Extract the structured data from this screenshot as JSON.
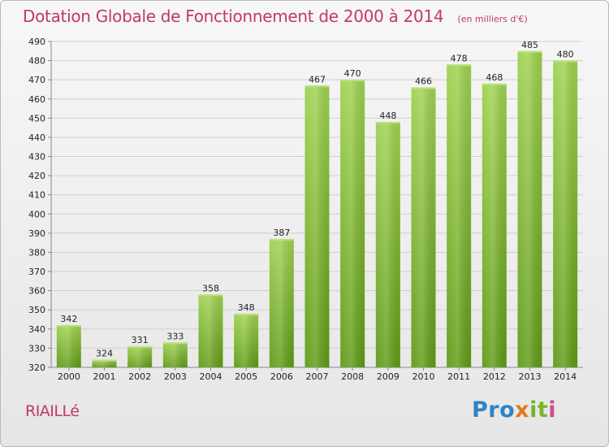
{
  "header": {
    "title": "Dotation Globale de Fonctionnement de 2000 à 2014",
    "subtitle": "(en milliers d'€)"
  },
  "commune": "RIAILLé",
  "logo": {
    "text": "Proxiti",
    "colors": [
      "#2f83c5",
      "#e37a1f",
      "#78b528",
      "#d24b8e"
    ]
  },
  "chart_data": {
    "type": "bar",
    "title": "Dotation Globale de Fonctionnement de 2000 à 2014",
    "subtitle": "(en milliers d'€)",
    "xlabel": "",
    "ylabel": "",
    "categories": [
      "2000",
      "2001",
      "2002",
      "2003",
      "2004",
      "2005",
      "2006",
      "2007",
      "2008",
      "2009",
      "2010",
      "2011",
      "2012",
      "2013",
      "2014"
    ],
    "values": [
      342,
      324,
      331,
      333,
      358,
      348,
      387,
      467,
      470,
      448,
      466,
      478,
      468,
      485,
      480
    ],
    "ylim": [
      320,
      490
    ],
    "yticks": [
      320,
      330,
      340,
      350,
      360,
      370,
      380,
      390,
      400,
      410,
      420,
      430,
      440,
      450,
      460,
      470,
      480,
      490
    ],
    "grid": true,
    "legend": "none",
    "bar_color": "#7cb82f"
  }
}
